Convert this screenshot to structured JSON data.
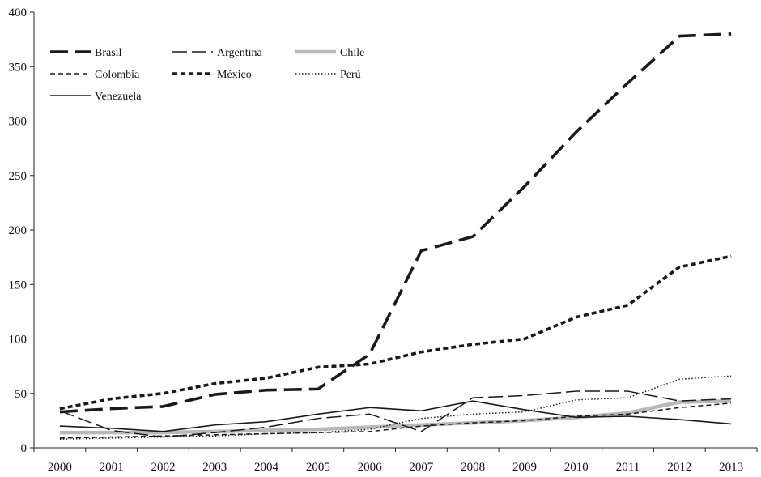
{
  "chart_data": {
    "type": "line",
    "title": "",
    "xlabel": "",
    "ylabel": "",
    "x": [
      "2000",
      "2001",
      "2002",
      "2003",
      "2004",
      "2005",
      "2006",
      "2007",
      "2008",
      "2009",
      "2010",
      "2011",
      "2012",
      "2013"
    ],
    "ylim": [
      0,
      400
    ],
    "yticks": [
      0,
      50,
      100,
      150,
      200,
      250,
      300,
      350,
      400
    ],
    "grid": false,
    "legend_position": "top-left",
    "series": [
      {
        "name": "Brasil",
        "color": "#1a1a1a",
        "style": "long-dash-thick",
        "values": [
          33,
          36,
          38,
          49,
          53,
          54,
          86,
          181,
          194,
          240,
          290,
          335,
          378,
          380
        ]
      },
      {
        "name": "Argentina",
        "color": "#1a1a1a",
        "style": "long-dash-thin",
        "values": [
          34,
          16,
          10,
          14,
          19,
          27,
          31,
          15,
          46,
          48,
          52,
          52,
          43,
          45
        ]
      },
      {
        "name": "Chile",
        "color": "#b8b8b8",
        "style": "solid-thick",
        "values": [
          14,
          14,
          14,
          15,
          16,
          17,
          19,
          21,
          23,
          25,
          28,
          32,
          42,
          43
        ]
      },
      {
        "name": "Colombia",
        "color": "#1a1a1a",
        "style": "short-dash",
        "values": [
          9,
          10,
          11,
          12,
          13,
          14,
          15,
          20,
          23,
          25,
          29,
          31,
          37,
          41
        ]
      },
      {
        "name": "México",
        "color": "#1a1a1a",
        "style": "dash-thick",
        "values": [
          36,
          45,
          50,
          59,
          64,
          74,
          77,
          88,
          95,
          100,
          120,
          131,
          166,
          176
        ]
      },
      {
        "name": "Perú",
        "color": "#1a1a1a",
        "style": "dotted",
        "values": [
          8,
          9,
          10,
          11,
          13,
          14,
          17,
          27,
          31,
          33,
          44,
          46,
          63,
          66
        ]
      },
      {
        "name": "Venezuela",
        "color": "#1a1a1a",
        "style": "solid-thin",
        "values": [
          20,
          18,
          15,
          21,
          24,
          31,
          37,
          34,
          43,
          35,
          28,
          29,
          26,
          22
        ]
      }
    ]
  }
}
